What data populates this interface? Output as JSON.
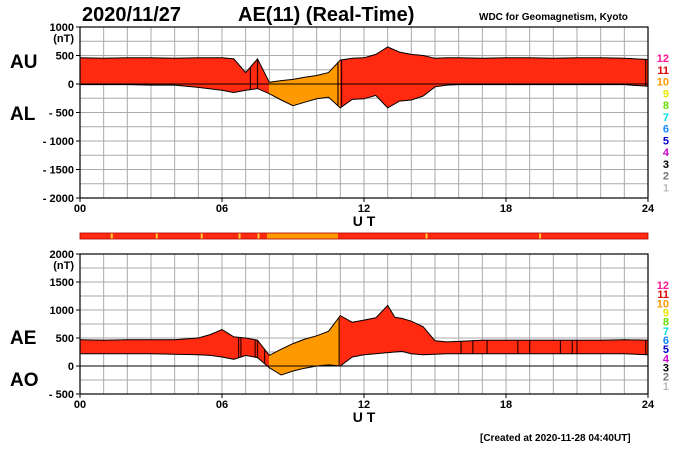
{
  "header": {
    "date": "2020/11/27",
    "title": "AE(11) (Real-Time)",
    "organization": "WDC for Geomagnetism, Kyoto"
  },
  "footer": {
    "created": "[Created at 2020-11-28 04:40UT]"
  },
  "colors": {
    "fill_main": "#ff2a10",
    "fill_low": "#ff9900",
    "outline": "#000000",
    "grid": "#aaaaaa"
  },
  "station_legend": [
    {
      "label": "12",
      "color": "#ff1493"
    },
    {
      "label": "11",
      "color": "#e00000"
    },
    {
      "label": "10",
      "color": "#ff9900"
    },
    {
      "label": "9",
      "color": "#e6e600"
    },
    {
      "label": "8",
      "color": "#66dd00"
    },
    {
      "label": "7",
      "color": "#00dddd"
    },
    {
      "label": "6",
      "color": "#1188ff"
    },
    {
      "label": "5",
      "color": "#0000cc"
    },
    {
      "label": "4",
      "color": "#cc00cc"
    },
    {
      "label": "3",
      "color": "#000000"
    },
    {
      "label": "2",
      "color": "#777777"
    },
    {
      "label": "1",
      "color": "#bbbbbb"
    }
  ],
  "chart_data": [
    {
      "type": "area",
      "panel": "AU/AL",
      "label_upper": "AU",
      "label_lower": "AL",
      "unit": "(nT)",
      "xlabel": "U T",
      "xlim": [
        0,
        24
      ],
      "ylim": [
        -2000,
        1000
      ],
      "x_ticks": [
        "00",
        "06",
        "12",
        "18",
        "24"
      ],
      "y_ticks": [
        "1000",
        "500",
        "0",
        "- 500",
        "- 1000",
        "- 1500",
        "- 2000"
      ],
      "y_tick_values": [
        1000,
        500,
        0,
        -500,
        -1000,
        -1500,
        -2000
      ],
      "series": [
        {
          "name": "AU",
          "x": [
            0,
            1,
            2,
            3,
            4,
            5,
            6,
            6.5,
            7,
            7.5,
            8,
            8.5,
            9,
            9.5,
            10,
            10.5,
            11,
            11.5,
            12,
            12.5,
            13,
            13.5,
            14,
            14.5,
            15,
            15.5,
            16,
            17,
            18,
            19,
            20,
            21,
            22,
            23,
            24
          ],
          "values": [
            460,
            450,
            460,
            460,
            450,
            460,
            460,
            440,
            200,
            440,
            30,
            60,
            80,
            120,
            150,
            200,
            420,
            450,
            460,
            520,
            650,
            560,
            520,
            500,
            450,
            460,
            460,
            450,
            460,
            460,
            450,
            460,
            460,
            450,
            430
          ]
        },
        {
          "name": "AL",
          "x": [
            0,
            1,
            2,
            3,
            4,
            5,
            6,
            6.5,
            7,
            7.5,
            8,
            8.5,
            9,
            9.5,
            10,
            10.5,
            11,
            11.5,
            12,
            12.5,
            13,
            13.5,
            14,
            14.5,
            15,
            15.5,
            16,
            17,
            18,
            19,
            20,
            21,
            22,
            23,
            24
          ],
          "values": [
            -10,
            -10,
            -10,
            -20,
            -20,
            -60,
            -110,
            -150,
            -110,
            -80,
            -170,
            -280,
            -380,
            -320,
            -260,
            -230,
            -420,
            -270,
            -260,
            -200,
            -420,
            -300,
            -280,
            -210,
            -50,
            -20,
            -10,
            -10,
            -10,
            -10,
            -10,
            -10,
            -10,
            -10,
            -40
          ]
        }
      ]
    },
    {
      "type": "area",
      "panel": "AE/AO",
      "label_upper": "AE",
      "label_lower": "AO",
      "unit": "(nT)",
      "xlabel": "U T",
      "xlim": [
        0,
        24
      ],
      "ylim": [
        -500,
        2000
      ],
      "x_ticks": [
        "00",
        "06",
        "12",
        "18",
        "24"
      ],
      "y_ticks": [
        "2000",
        "1500",
        "1000",
        "500",
        "0",
        "- 500"
      ],
      "y_tick_values": [
        2000,
        1500,
        1000,
        500,
        0,
        -500
      ],
      "series": [
        {
          "name": "AE",
          "x": [
            0,
            1,
            2,
            3,
            4,
            5,
            5.5,
            6,
            6.5,
            7,
            7.5,
            8,
            8.5,
            9,
            9.5,
            10,
            10.5,
            11,
            11.5,
            12,
            12.5,
            13,
            13.3,
            13.6,
            14,
            14.5,
            15,
            15.5,
            16,
            17,
            18,
            19,
            20,
            21,
            22,
            23,
            24
          ],
          "values": [
            470,
            460,
            470,
            470,
            470,
            500,
            560,
            650,
            520,
            500,
            460,
            190,
            300,
            400,
            480,
            540,
            620,
            900,
            780,
            820,
            860,
            1080,
            870,
            850,
            800,
            700,
            450,
            430,
            440,
            460,
            460,
            460,
            460,
            460,
            460,
            470,
            460
          ]
        },
        {
          "name": "AO",
          "x": [
            0,
            1,
            2,
            3,
            4,
            5,
            5.5,
            6,
            6.5,
            7,
            7.5,
            8,
            8.5,
            9,
            9.5,
            10,
            10.5,
            11,
            11.5,
            12,
            12.5,
            13,
            13.3,
            13.6,
            14,
            14.5,
            15,
            15.5,
            16,
            17,
            18,
            19,
            20,
            21,
            22,
            23,
            24
          ],
          "values": [
            220,
            220,
            220,
            220,
            210,
            200,
            190,
            160,
            120,
            190,
            150,
            -30,
            -160,
            -90,
            -40,
            0,
            20,
            0,
            160,
            200,
            220,
            240,
            250,
            260,
            220,
            200,
            210,
            220,
            220,
            220,
            220,
            220,
            220,
            220,
            220,
            220,
            200
          ]
        }
      ]
    }
  ]
}
